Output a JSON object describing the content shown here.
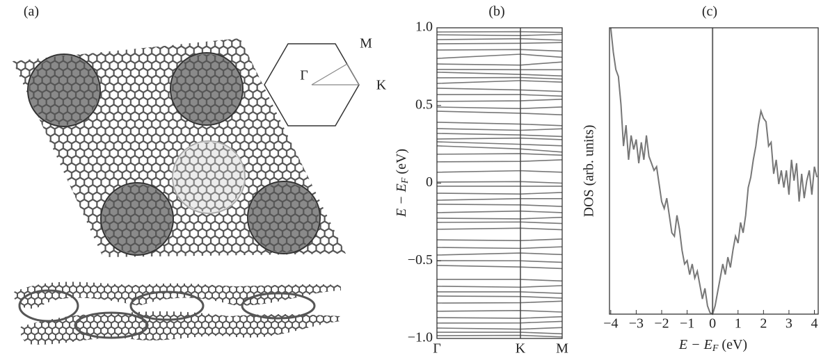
{
  "panel_a": {
    "label": "(a)",
    "bz_labels": {
      "gamma": "Γ",
      "k": "K",
      "m": "M"
    }
  },
  "chart_data": [
    {
      "type": "bands",
      "title": "(b)",
      "ylabel": [
        "E − E",
        "F",
        " (eV)"
      ],
      "categories": [
        "Γ",
        "K",
        "M"
      ],
      "color": "#777",
      "ylim": [
        -1.0,
        1.0
      ],
      "yticks": [
        {
          "value": 1.0,
          "label": "1.0"
        },
        {
          "value": 0.5,
          "label": "0.5"
        },
        0,
        {
          "value": -0.5,
          "label": "−0.5"
        },
        {
          "value": -1.0,
          "label": "−1.0"
        }
      ],
      "bands": [
        [
          0.973,
          0.975,
          0.97
        ],
        [
          0.955,
          0.95,
          0.958
        ],
        [
          0.924,
          0.93,
          0.92
        ],
        [
          0.897,
          0.9,
          0.905
        ],
        [
          0.857,
          0.86,
          0.85
        ],
        [
          0.803,
          0.83,
          0.81
        ],
        [
          0.767,
          0.76,
          0.78
        ],
        [
          0.732,
          0.73,
          0.73
        ],
        [
          0.714,
          0.7,
          0.69
        ],
        [
          0.678,
          0.68,
          0.67
        ],
        [
          0.642,
          0.66,
          0.65
        ],
        [
          0.611,
          0.6,
          0.59
        ],
        [
          0.57,
          0.57,
          0.56
        ],
        [
          0.526,
          0.53,
          0.54
        ],
        [
          0.49,
          0.48,
          0.49
        ],
        [
          0.463,
          0.45,
          0.44
        ],
        [
          0.392,
          0.38,
          0.37
        ],
        [
          0.351,
          0.34,
          0.35
        ],
        [
          0.32,
          0.31,
          0.3
        ],
        [
          0.284,
          0.29,
          0.28
        ],
        [
          0.266,
          0.25,
          0.24
        ],
        [
          0.24,
          0.22,
          0.2
        ],
        [
          0.186,
          0.19,
          0.18
        ],
        [
          0.137,
          0.14,
          0.15
        ],
        [
          0.07,
          0.08,
          0.07
        ],
        [
          0.007,
          0.01,
          0.0
        ],
        [
          -0.02,
          -0.02,
          -0.02
        ],
        [
          -0.065,
          -0.07,
          -0.06
        ],
        [
          -0.11,
          -0.1,
          -0.1
        ],
        [
          -0.136,
          -0.14,
          -0.15
        ],
        [
          -0.19,
          -0.18,
          -0.19
        ],
        [
          -0.226,
          -0.23,
          -0.22
        ],
        [
          -0.253,
          -0.25,
          -0.26
        ],
        [
          -0.297,
          -0.29,
          -0.3
        ],
        [
          -0.365,
          -0.37,
          -0.36
        ],
        [
          -0.414,
          -0.42,
          -0.41
        ],
        [
          -0.463,
          -0.45,
          -0.46
        ],
        [
          -0.499,
          -0.5,
          -0.51
        ],
        [
          -0.53,
          -0.54,
          -0.55
        ],
        [
          -0.62,
          -0.62,
          -0.63
        ],
        [
          -0.664,
          -0.67,
          -0.66
        ],
        [
          -0.7,
          -0.7,
          -0.71
        ],
        [
          -0.727,
          -0.73,
          -0.74
        ],
        [
          -0.772,
          -0.77,
          -0.76
        ],
        [
          -0.825,
          -0.82,
          -0.83
        ],
        [
          -0.866,
          -0.87,
          -0.86
        ],
        [
          -0.901,
          -0.9,
          -0.89
        ],
        [
          -0.933,
          -0.94,
          -0.93
        ],
        [
          -0.96,
          -0.96,
          -0.97
        ],
        [
          -0.982,
          -0.98,
          -0.99
        ]
      ]
    },
    {
      "type": "line",
      "title": "(c)",
      "ylabel": "DOS (arb. units)",
      "xlabel": [
        "E − E",
        "F",
        " (eV)"
      ],
      "color": "#777",
      "xlim": [
        -4.05,
        4.15
      ],
      "ylim": [
        0,
        1
      ],
      "vline": 0,
      "xticks": [
        {
          "value": -4,
          "label": "−4"
        },
        {
          "value": -3,
          "label": "−3"
        },
        {
          "value": -2,
          "label": "−2"
        },
        {
          "value": -1,
          "label": "−1"
        },
        0,
        1,
        2,
        3,
        4
      ],
      "x": [
        -4.0,
        -3.9,
        -3.8,
        -3.7,
        -3.6,
        -3.5,
        -3.4,
        -3.3,
        -3.2,
        -3.1,
        -3.0,
        -2.9,
        -2.8,
        -2.7,
        -2.6,
        -2.5,
        -2.4,
        -2.3,
        -2.2,
        -2.1,
        -2.0,
        -1.9,
        -1.8,
        -1.7,
        -1.6,
        -1.5,
        -1.4,
        -1.3,
        -1.2,
        -1.1,
        -1.0,
        -0.9,
        -0.8,
        -0.7,
        -0.6,
        -0.5,
        -0.4,
        -0.3,
        -0.2,
        -0.1,
        0.0,
        0.1,
        0.2,
        0.3,
        0.4,
        0.5,
        0.6,
        0.7,
        0.8,
        0.9,
        1.0,
        1.1,
        1.2,
        1.3,
        1.4,
        1.5,
        1.6,
        1.7,
        1.8,
        1.9,
        2.0,
        2.1,
        2.2,
        2.3,
        2.4,
        2.5,
        2.6,
        2.7,
        2.8,
        2.9,
        3.0,
        3.1,
        3.2,
        3.3,
        3.4,
        3.5,
        3.6,
        3.7,
        3.8,
        3.9,
        4.0,
        4.1
      ],
      "values": [
        1.0,
        0.915,
        0.854,
        0.83,
        0.733,
        0.587,
        0.66,
        0.539,
        0.624,
        0.575,
        0.61,
        0.527,
        0.6,
        0.539,
        0.624,
        0.551,
        0.527,
        0.502,
        0.515,
        0.454,
        0.393,
        0.369,
        0.405,
        0.345,
        0.284,
        0.272,
        0.345,
        0.296,
        0.223,
        0.175,
        0.187,
        0.138,
        0.175,
        0.126,
        0.15,
        0.102,
        0.053,
        0.09,
        0.029,
        0.005,
        0.0,
        0.029,
        0.078,
        0.126,
        0.175,
        0.138,
        0.199,
        0.163,
        0.223,
        0.272,
        0.248,
        0.32,
        0.284,
        0.345,
        0.442,
        0.478,
        0.539,
        0.587,
        0.66,
        0.709,
        0.684,
        0.672,
        0.587,
        0.6,
        0.49,
        0.539,
        0.454,
        0.502,
        0.442,
        0.502,
        0.417,
        0.539,
        0.466,
        0.527,
        0.393,
        0.49,
        0.405,
        0.466,
        0.502,
        0.417,
        0.515,
        0.478
      ]
    }
  ]
}
